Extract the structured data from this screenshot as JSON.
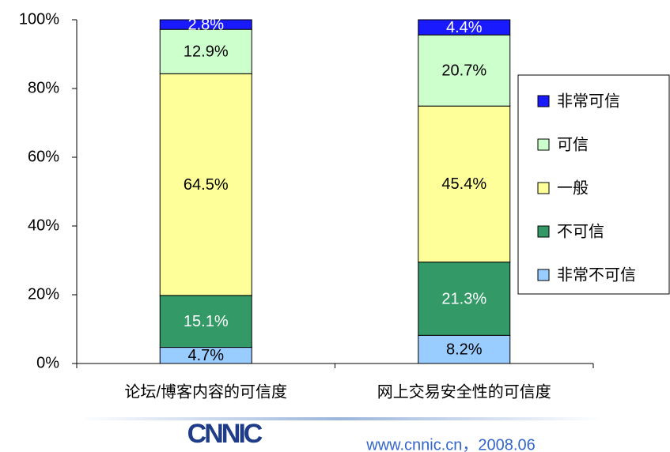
{
  "chart_data": {
    "type": "stacked_bar",
    "categories": [
      "论坛/博客内容的可信度",
      "网上交易安全性的可信度"
    ],
    "series": [
      {
        "name": "非常不可信",
        "color": "#99ccff",
        "label_color": "#000000",
        "values": [
          4.7,
          8.2
        ],
        "value_labels": [
          "4.7%",
          "8.2%"
        ]
      },
      {
        "name": "不可信",
        "color": "#339966",
        "label_color": "#ffffff",
        "values": [
          15.1,
          21.3
        ],
        "value_labels": [
          "15.1%",
          "21.3%"
        ]
      },
      {
        "name": "一般",
        "color": "#ffff99",
        "label_color": "#000000",
        "values": [
          64.5,
          45.4
        ],
        "value_labels": [
          "64.5%",
          "45.4%"
        ]
      },
      {
        "name": "可信",
        "color": "#ccffcc",
        "label_color": "#000000",
        "values": [
          12.9,
          20.7
        ],
        "value_labels": [
          "12.9%",
          "20.7%"
        ]
      },
      {
        "name": "非常可信",
        "color": "#1a1aff",
        "label_color": "#ffffff",
        "values": [
          2.8,
          4.4
        ],
        "value_labels": [
          "2.8%",
          "4.4%"
        ]
      }
    ],
    "ylim": [
      0,
      100
    ],
    "yticks": [
      {
        "value": 0,
        "label": "0%"
      },
      {
        "value": 20,
        "label": "20%"
      },
      {
        "value": 40,
        "label": "40%"
      },
      {
        "value": 60,
        "label": "60%"
      },
      {
        "value": 80,
        "label": "80%"
      },
      {
        "value": 100,
        "label": "100%"
      }
    ],
    "legend": "right"
  },
  "footer": {
    "logo": "CNNIC",
    "source": "www.cnnic.cn，2008.06"
  }
}
